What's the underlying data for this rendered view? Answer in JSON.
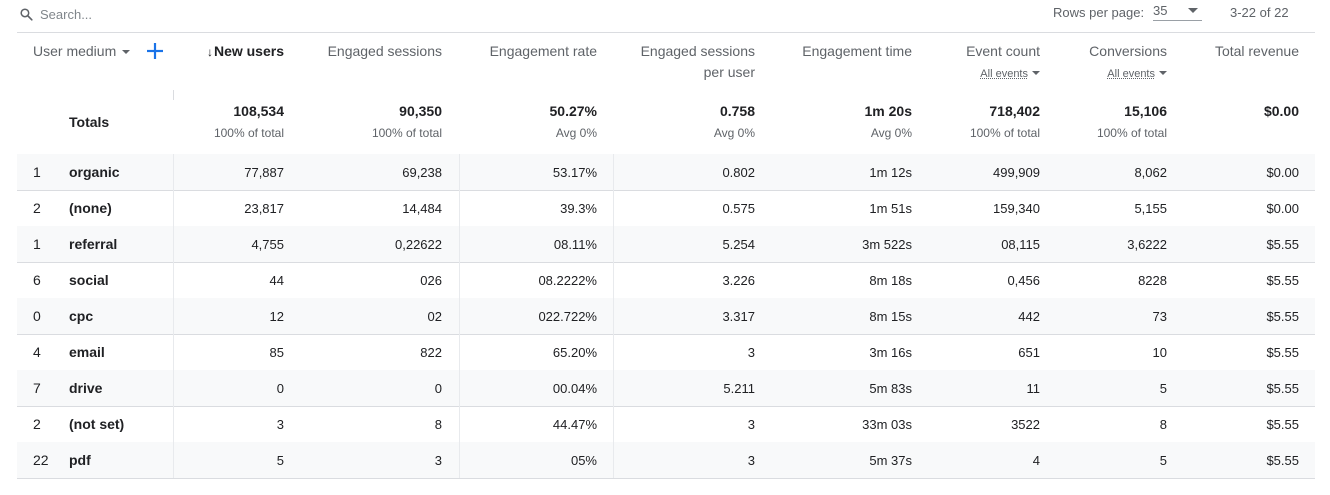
{
  "search": {
    "placeholder": "Search...",
    "value": ""
  },
  "rows_per_page": {
    "label": "Rows per page:",
    "value": "35"
  },
  "pagination": "3-22 of 22",
  "dimension": {
    "label": "User medium"
  },
  "columns": [
    {
      "label": "New users",
      "sorted": true
    },
    {
      "label": "Engaged sessions"
    },
    {
      "label": "Engagement rate"
    },
    {
      "label": "Engaged sessions",
      "label2": "per user"
    },
    {
      "label": "Engagement time"
    },
    {
      "label": "Event count",
      "sub": "All events"
    },
    {
      "label": "Conversions",
      "sub": "All events"
    },
    {
      "label": "Total revenue"
    }
  ],
  "sort_indicator": "↓",
  "totals": {
    "label": "Totals",
    "values": [
      "108,534",
      "90,350",
      "50.27%",
      "0.758",
      "1m 20s",
      "718,402",
      "15,106",
      "$0.00"
    ],
    "subs": [
      "100% of total",
      "100% of total",
      "Avg 0%",
      "Avg 0%",
      "Avg 0%",
      "100% of total",
      "100% of total",
      ""
    ]
  },
  "rows": [
    {
      "idx": "1",
      "medium": "organic",
      "cells": [
        "77,887",
        "69,238",
        "53.17%",
        "0.802",
        "1m 12s",
        "499,909",
        "8,062",
        "$0.00"
      ]
    },
    {
      "idx": "2",
      "medium": "(none)",
      "cells": [
        "23,817",
        "14,484",
        "39.3%",
        "0.575",
        "1m 51s",
        "159,340",
        "5,155",
        "$0.00"
      ]
    },
    {
      "idx": "1",
      "medium": "referral",
      "cells": [
        "4,755",
        "0,22622",
        "08.11%",
        "5.254",
        "3m 522s",
        "08,115",
        "3,6222",
        "$5.55"
      ]
    },
    {
      "idx": "6",
      "medium": "social",
      "cells": [
        "44",
        "026",
        "08.2222%",
        "3.226",
        "8m 18s",
        "0,456",
        "8228",
        "$5.55"
      ]
    },
    {
      "idx": "0",
      "medium": "cpc",
      "cells": [
        "12",
        "02",
        "022.722%",
        "3.317",
        "8m 15s",
        "442",
        "73",
        "$5.55"
      ]
    },
    {
      "idx": "4",
      "medium": "email",
      "cells": [
        "85",
        "822",
        "65.20%",
        "3",
        "3m 16s",
        "651",
        "10",
        "$5.55"
      ]
    },
    {
      "idx": "7",
      "medium": "drive",
      "cells": [
        "0",
        "0",
        "00.04%",
        "5.211",
        "5m 83s",
        "11",
        "5",
        "$5.55"
      ]
    },
    {
      "idx": "2",
      "medium": "(not set)",
      "cells": [
        "3",
        "8",
        "44.47%",
        "3",
        "33m 03s",
        "3522",
        "8",
        "$5.55"
      ]
    },
    {
      "idx": "22",
      "medium": "pdf",
      "cells": [
        "5",
        "3",
        "05%",
        "3",
        "5m 37s",
        "4",
        "5",
        "$5.55"
      ]
    }
  ],
  "icons": {
    "search": "search-icon",
    "add": "plus-icon"
  },
  "colors": {
    "accent": "#1a73e8",
    "row_alt": "#f8f9fa",
    "border": "#dadce0"
  }
}
